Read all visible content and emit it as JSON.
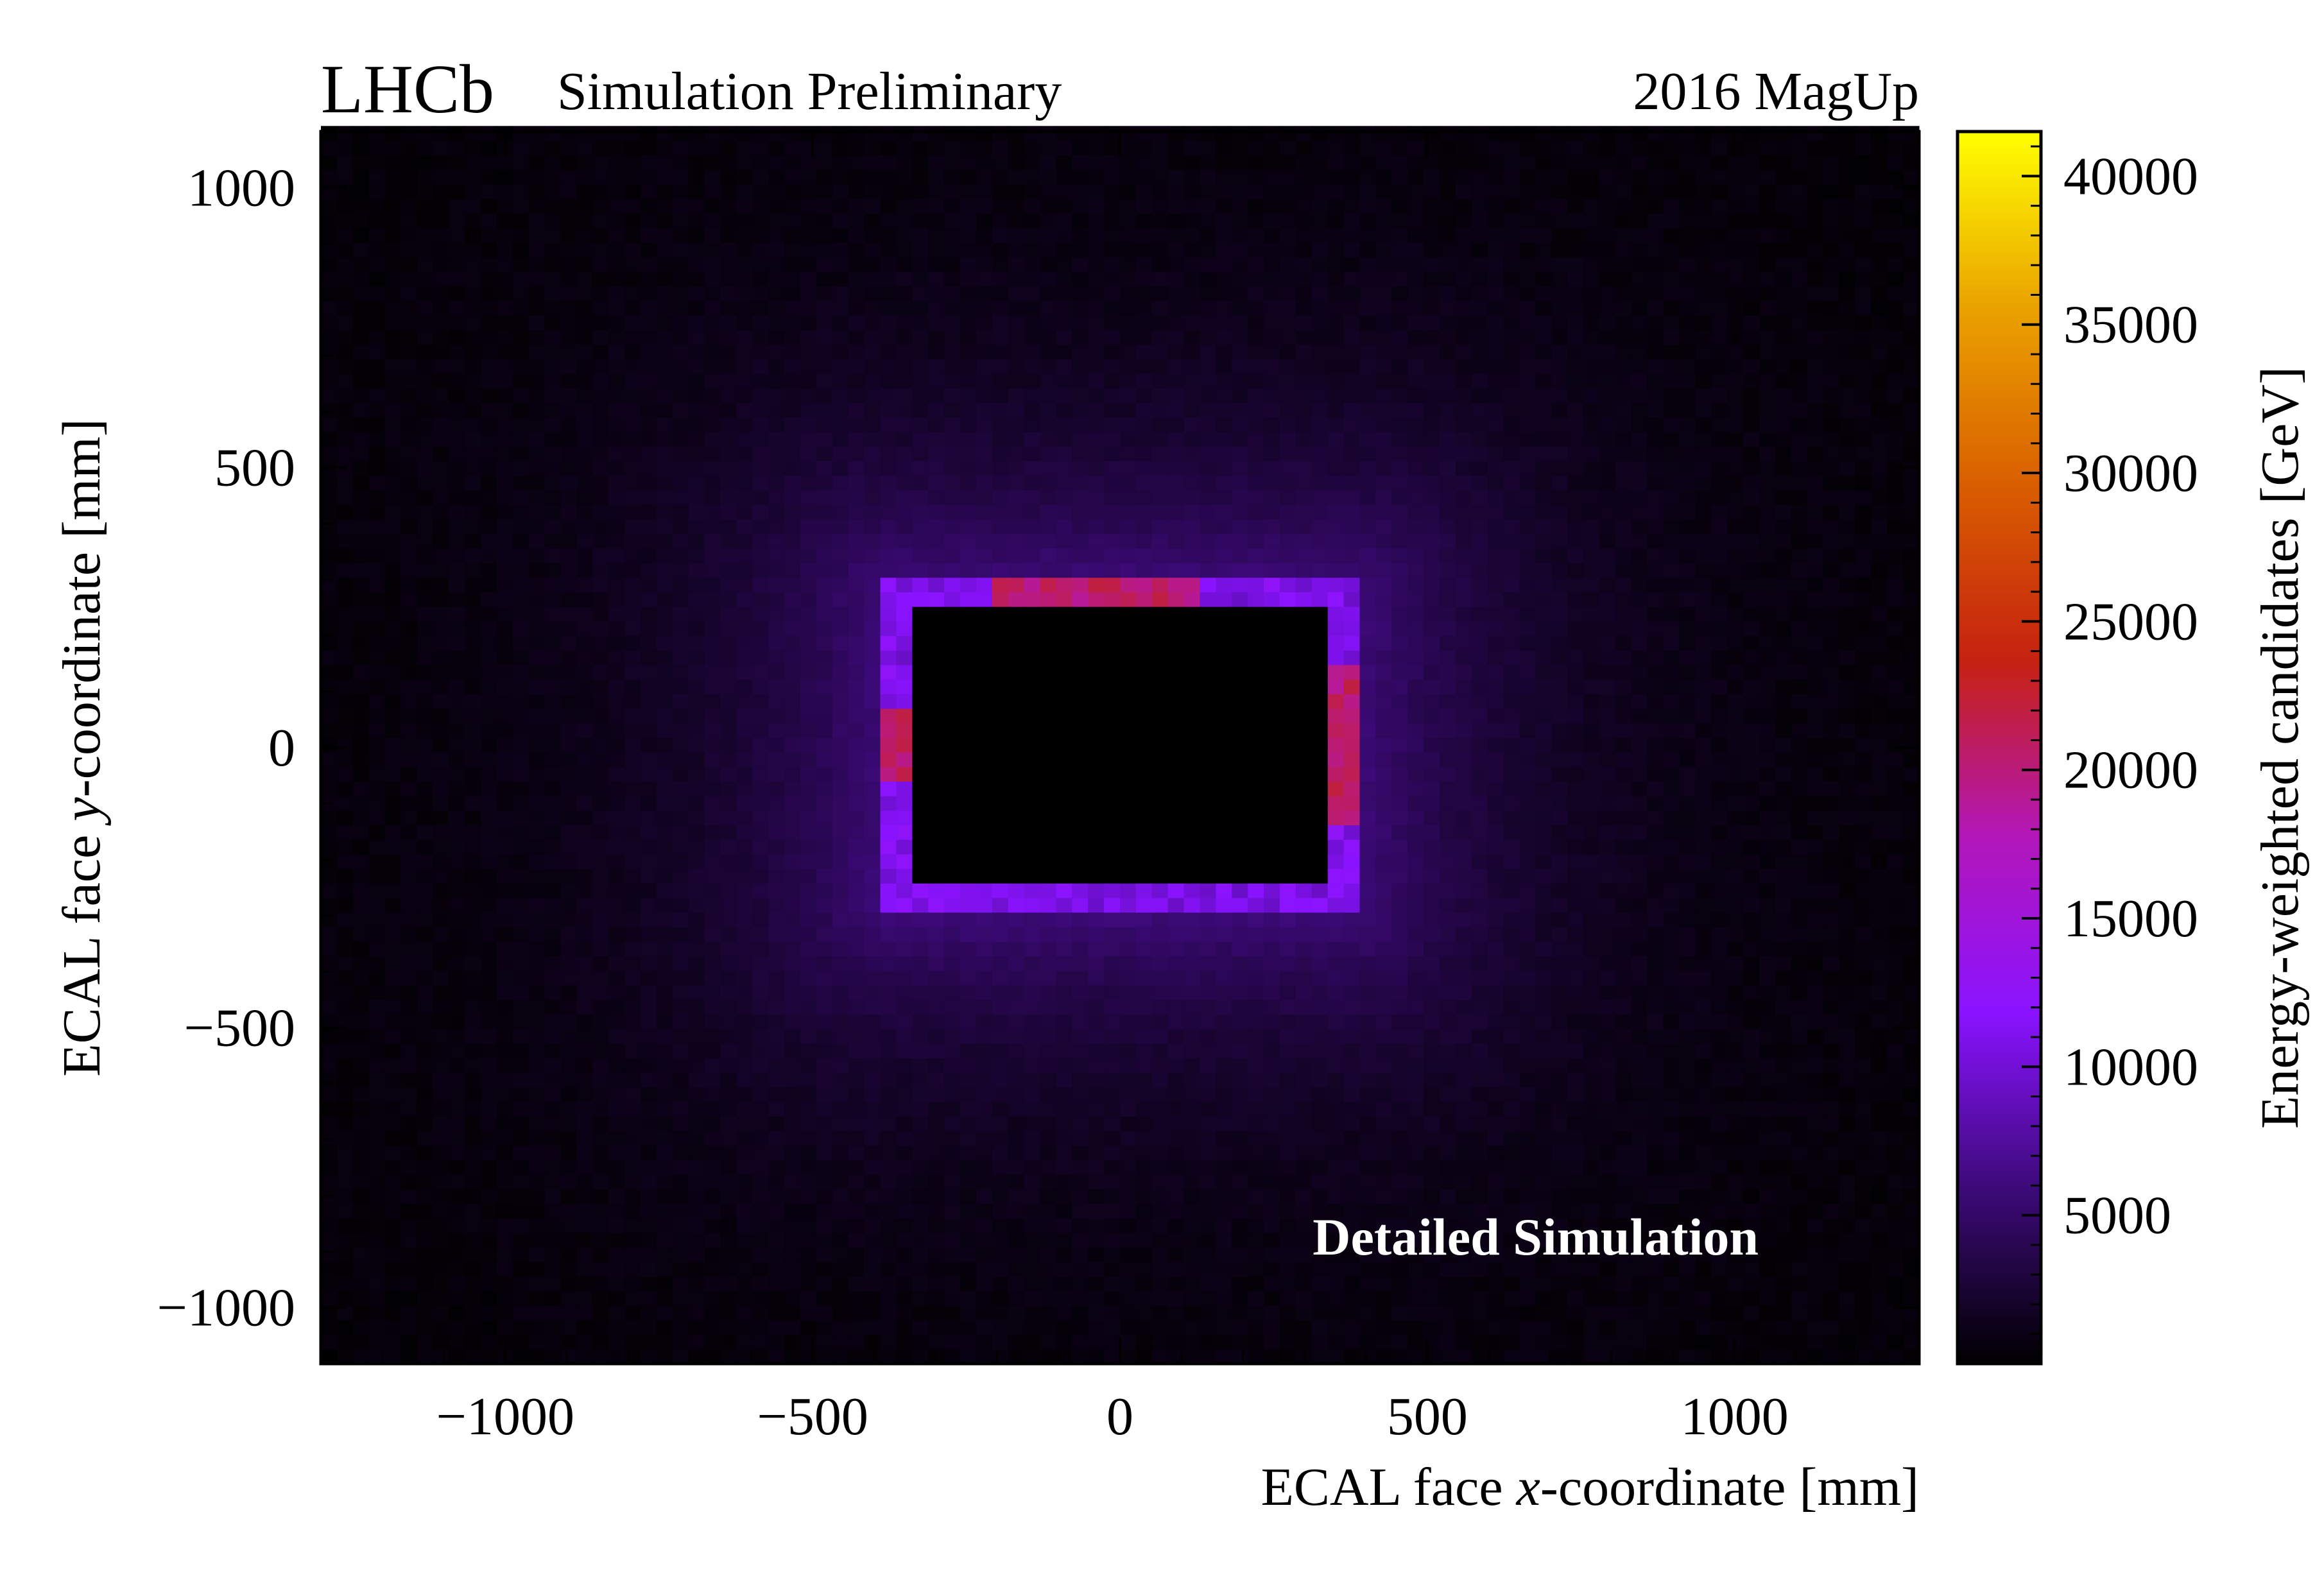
{
  "header": {
    "experiment": "LHCb",
    "status": "Simulation Preliminary",
    "run_condition": "2016 MagUp"
  },
  "chart_data": {
    "type": "heatmap",
    "title": "",
    "xlabel": {
      "pre": "ECAL face ",
      "var": "x",
      "post": "-coordinate [mm]"
    },
    "ylabel": {
      "pre": "ECAL face ",
      "var": "y",
      "post": "-coordinate [mm]"
    },
    "xlim": [
      -1300,
      1300
    ],
    "ylim": [
      -1100,
      1100
    ],
    "x_ticks": [
      -1000,
      -500,
      0,
      500,
      1000
    ],
    "x_tick_labels": [
      "−1000",
      "−500",
      "0",
      "500",
      "1000"
    ],
    "y_ticks": [
      -1000,
      -500,
      0,
      500,
      1000
    ],
    "y_tick_labels": [
      "−1000",
      "−500",
      "0",
      "500",
      "1000"
    ],
    "annotation": "Detailed Simulation",
    "colorbar": {
      "label": "Energy-weighted candidates [GeV]",
      "range": [
        0,
        41500
      ],
      "ticks": [
        5000,
        10000,
        15000,
        20000,
        25000,
        30000,
        35000,
        40000
      ],
      "tick_labels": [
        "5000",
        "10000",
        "15000",
        "20000",
        "25000",
        "30000",
        "35000",
        "40000"
      ],
      "colormap": [
        "#000000",
        "#3d0a7a",
        "#8a13ff",
        "#b317b8",
        "#c62210",
        "#d95e00",
        "#eaa200",
        "#ffff00"
      ]
    },
    "distribution": {
      "description_values": {
        "beam_hole_x": [
          -360,
          360
        ],
        "beam_hole_y": [
          -270,
          270
        ],
        "hole_edge_intensity": 11000,
        "hole_edge_peak_intensity": 21000,
        "falloff_scale_mm": 260
      }
    },
    "grid": false,
    "legend": "none"
  }
}
